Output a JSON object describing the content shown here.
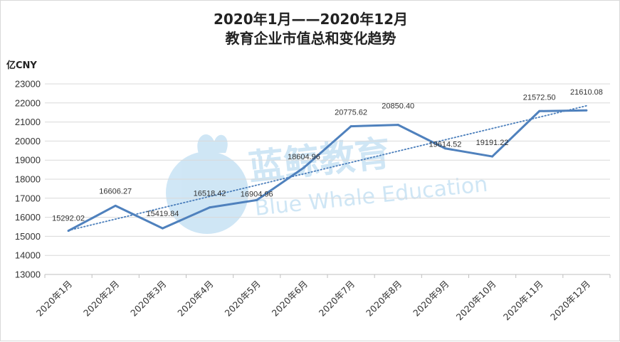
{
  "chart_data": {
    "type": "line",
    "title_line1": "2020年1月——2020年12月",
    "title_line2": "教育企业市值总和变化趋势",
    "ylabel": "亿CNY",
    "xlabel": "",
    "categories": [
      "2020年1月",
      "2020年2月",
      "2020年3月",
      "2020年4月",
      "2020年5月",
      "2020年6月",
      "2020年7月",
      "2020年8月",
      "2020年9月",
      "2020年10月",
      "2020年11月",
      "2020年12月"
    ],
    "values": [
      15292.02,
      16606.27,
      15419.84,
      16518.42,
      16904.96,
      18604.96,
      20775.62,
      20850.4,
      19614.52,
      19191.22,
      21572.5,
      21610.08
    ],
    "value_labels": [
      "15292.02",
      "16606.27",
      "15419.84",
      "16518.42",
      "16904.96",
      "18604.96",
      "20775.62",
      "20850.40",
      "19614.52",
      "19191.22",
      "21572.50",
      "21610.08"
    ],
    "ylim": [
      13000,
      23000
    ],
    "yticks": [
      13000,
      14000,
      15000,
      16000,
      17000,
      18000,
      19000,
      20000,
      21000,
      22000,
      23000
    ],
    "grid": true,
    "trendline": "linear",
    "line_color": "#4f81bd",
    "trend_color": "#4a7ebb"
  },
  "watermark": {
    "brand_cn": "蓝鲸教育",
    "brand_en": "Blue Whale Education",
    "color": "#a9d3ee"
  }
}
